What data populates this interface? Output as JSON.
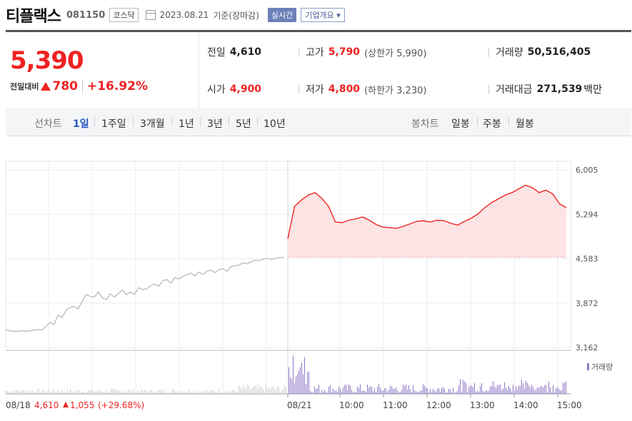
{
  "header": {
    "name": "티플랙스",
    "code": "081150",
    "market": "코스닥",
    "date": "2023.08.21",
    "basis": "기준(장마감)",
    "realtime_btn": "실시간",
    "company_btn": "기업개요",
    "company_arrow": "▾"
  },
  "price": {
    "current": "5,390",
    "change_label": "전일대비",
    "change_amount": "780",
    "change_pct": "+16.92%",
    "up_color": "#e22222"
  },
  "stats": {
    "prev_label": "전일",
    "prev_value": "4,610",
    "high_label": "고가",
    "high_value": "5,790",
    "upper_label": "(상한가 5,990)",
    "volume_label": "거래량",
    "volume_value": "50,516,405",
    "open_label": "시가",
    "open_value": "4,900",
    "low_label": "저가",
    "low_value": "4,800",
    "lower_label": "(하한가 3,230)",
    "amount_label": "거래대금",
    "amount_value": "271,539",
    "amount_unit": "백만"
  },
  "tabs": {
    "line_label": "선차트",
    "periods": [
      "1일",
      "1주일",
      "3개월",
      "1년",
      "3년",
      "5년",
      "10년"
    ],
    "active": "1일",
    "candle_label": "봉차트",
    "candles": [
      "일봉",
      "주봉",
      "월봉"
    ]
  },
  "chart_data": {
    "type": "line",
    "ylim": [
      3162,
      6005
    ],
    "y_ticks": [
      "6,005",
      "5,294",
      "4,583",
      "3,872",
      "3,162"
    ],
    "x_ticks": [
      "08/21",
      "10:00",
      "11:00",
      "12:00",
      "13:00",
      "14:00",
      "15:00"
    ],
    "baseline": 4610,
    "volume_label": "거래량",
    "prev_day": {
      "date": "08/18",
      "close": "4,610",
      "change": "1,055",
      "change_pct": "(+29.68%)",
      "values": [
        3450,
        3430,
        3420,
        3420,
        3430,
        3420,
        3430,
        3440,
        3450,
        3440,
        3500,
        3560,
        3530,
        3680,
        3640,
        3760,
        3800,
        3820,
        3780,
        3900,
        4010,
        3980,
        3970,
        4050,
        3960,
        3930,
        4020,
        3970,
        4030,
        4080,
        4010,
        4050,
        4010,
        4120,
        4090,
        4100,
        4150,
        4180,
        4140,
        4230,
        4250,
        4190,
        4280,
        4260,
        4300,
        4330,
        4350,
        4310,
        4370,
        4330,
        4380,
        4400,
        4360,
        4410,
        4420,
        4380,
        4460,
        4470,
        4480,
        4520,
        4500,
        4540,
        4560,
        4550,
        4580,
        4590,
        4570,
        4590,
        4600,
        4610
      ]
    },
    "today": {
      "times": [
        "09:00",
        "09:05",
        "09:10",
        "09:15",
        "09:20",
        "09:25",
        "09:30",
        "09:40",
        "09:50",
        "10:00",
        "10:10",
        "10:20",
        "10:30",
        "10:40",
        "10:50",
        "11:00",
        "11:10",
        "11:20",
        "11:30",
        "11:40",
        "11:50",
        "12:00",
        "12:10",
        "12:20",
        "12:30",
        "12:40",
        "12:50",
        "13:00",
        "13:10",
        "13:20",
        "13:30",
        "13:40",
        "13:50",
        "14:00",
        "14:10",
        "14:20",
        "14:30",
        "14:40",
        "14:50",
        "15:00",
        "15:10",
        "15:20"
      ],
      "values": [
        4900,
        5420,
        5520,
        5600,
        5640,
        5550,
        5420,
        5170,
        5160,
        5200,
        5220,
        5250,
        5200,
        5130,
        5090,
        5080,
        5070,
        5100,
        5140,
        5180,
        5190,
        5170,
        5200,
        5190,
        5150,
        5120,
        5180,
        5230,
        5300,
        5400,
        5480,
        5540,
        5600,
        5640,
        5700,
        5760,
        5720,
        5640,
        5680,
        5620,
        5460,
        5400
      ]
    }
  }
}
